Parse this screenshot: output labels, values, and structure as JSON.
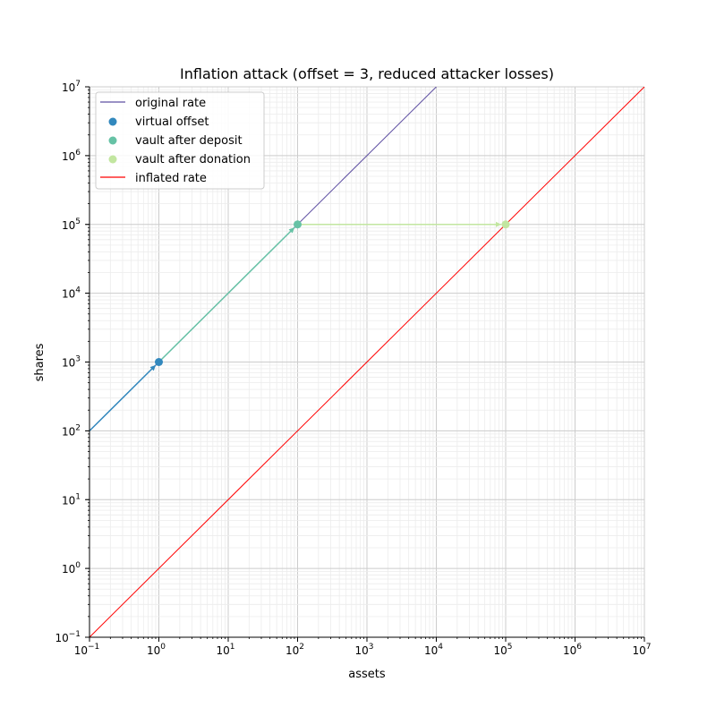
{
  "chart_data": {
    "type": "line",
    "title": "Inflation attack (offset = 3, reduced attacker losses)",
    "xlabel": "assets",
    "ylabel": "shares",
    "xscale": "log",
    "yscale": "log",
    "xlim": [
      0.1,
      10000000
    ],
    "ylim": [
      0.1,
      10000000
    ],
    "grid": true,
    "legend_placement": "upper-left",
    "x_tick_exponents": [
      -1,
      0,
      1,
      2,
      3,
      4,
      5,
      6,
      7
    ],
    "y_tick_exponents": [
      -1,
      0,
      1,
      2,
      3,
      4,
      5,
      6,
      7
    ],
    "series": [
      {
        "name": "original rate",
        "kind": "line",
        "color": "#5e4fa2",
        "x": [
          0.1,
          10000
        ],
        "y": [
          100,
          10000000
        ]
      },
      {
        "name": "virtual offset",
        "kind": "point",
        "color": "#3288bd",
        "x": [
          1
        ],
        "y": [
          1000
        ]
      },
      {
        "name": "vault after deposit",
        "kind": "point",
        "color": "#66c2a5",
        "x": [
          100
        ],
        "y": [
          100000
        ]
      },
      {
        "name": "vault after donation",
        "kind": "point",
        "color": "#c2e6a0",
        "x": [
          100000
        ],
        "y": [
          100000
        ]
      },
      {
        "name": "inflated rate",
        "kind": "line",
        "color": "#ff0000",
        "x": [
          0.1,
          10000000
        ],
        "y": [
          0.1,
          10000000
        ]
      }
    ],
    "arrows": [
      {
        "from": [
          0.1,
          100
        ],
        "to": [
          1,
          1000
        ],
        "color": "#3288bd"
      },
      {
        "from": [
          1,
          1000
        ],
        "to": [
          100,
          100000
        ],
        "color": "#66c2a5"
      },
      {
        "from": [
          100,
          100000
        ],
        "to": [
          100000,
          100000
        ],
        "color": "#c2e6a0"
      }
    ]
  }
}
